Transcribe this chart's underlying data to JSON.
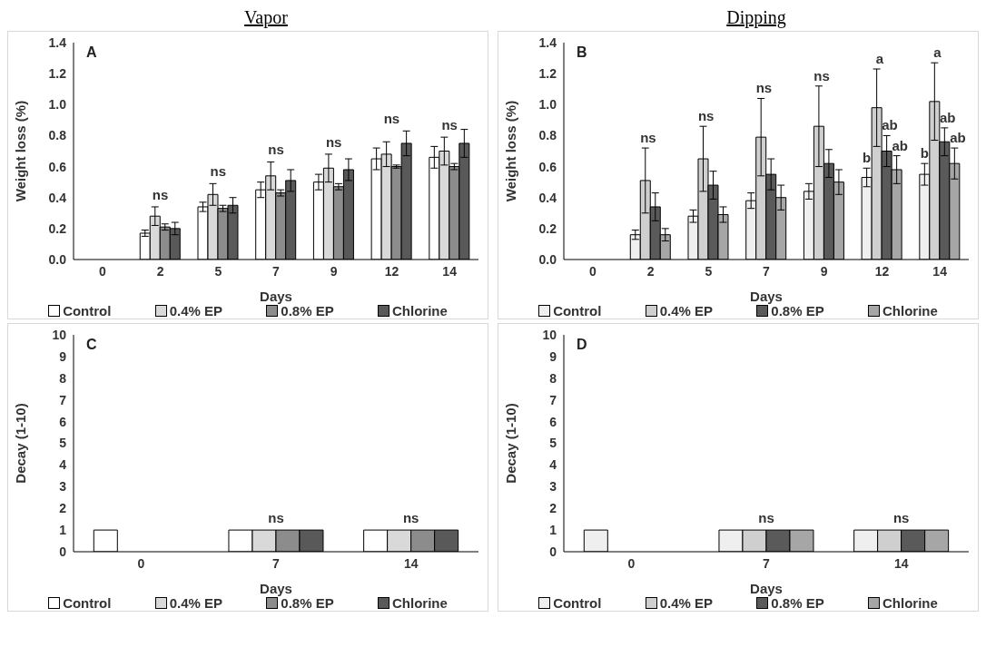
{
  "chart_data": [
    {
      "type": "bar",
      "title": "Vapor",
      "xlabel": "Days",
      "ylabel": "Weight loss (%)",
      "categories": [
        "0",
        "2",
        "5",
        "7",
        "9",
        "12",
        "14"
      ],
      "series": [
        {
          "name": "Control",
          "color": "#ffffff",
          "values": [
            null,
            0.17,
            0.34,
            0.45,
            0.5,
            0.65,
            0.66
          ],
          "errors": [
            null,
            0.02,
            0.03,
            0.05,
            0.05,
            0.07,
            0.07
          ]
        },
        {
          "name": "0.4% EP",
          "color": "#d9d9d9",
          "values": [
            null,
            0.28,
            0.42,
            0.54,
            0.59,
            0.68,
            0.7
          ],
          "errors": [
            null,
            0.06,
            0.07,
            0.09,
            0.09,
            0.08,
            0.09
          ]
        },
        {
          "name": "0.8% EP",
          "color": "#8c8c8c",
          "values": [
            null,
            0.21,
            0.33,
            0.43,
            0.47,
            0.6,
            0.6
          ],
          "errors": [
            null,
            0.02,
            0.02,
            0.02,
            0.02,
            0.01,
            0.02
          ]
        },
        {
          "name": "Chlorine",
          "color": "#595959",
          "values": [
            null,
            0.2,
            0.35,
            0.51,
            0.58,
            0.75,
            0.75
          ],
          "errors": [
            null,
            0.04,
            0.05,
            0.07,
            0.07,
            0.08,
            0.09
          ]
        }
      ],
      "ylim": [
        0,
        1.4
      ],
      "yticks": [
        {
          "value": 0,
          "label": "0.0"
        },
        {
          "value": 0.2,
          "label": "0.2"
        },
        {
          "value": 0.4,
          "label": "0.4"
        },
        {
          "value": 0.6,
          "label": "0.6"
        },
        {
          "value": 0.8,
          "label": "0.8"
        },
        {
          "value": 1,
          "label": "1.0"
        },
        {
          "value": 1.2,
          "label": "1.2"
        },
        {
          "value": 1.4,
          "label": "1.4"
        }
      ],
      "grid": false,
      "legend": "bottom",
      "annotations": [
        "A",
        {
          "text": "ns",
          "x": "2",
          "y": 0.28
        },
        {
          "text": "ns",
          "x": "5",
          "y": 0.42
        },
        {
          "text": "ns",
          "x": "7",
          "y": 0.54
        },
        {
          "text": "ns",
          "x": "9",
          "y": 0.59
        },
        {
          "text": "ns",
          "x": "12",
          "y": 0.75
        },
        {
          "text": "ns",
          "x": "14",
          "y": 0.7
        }
      ]
    },
    {
      "type": "bar",
      "title": "Dipping",
      "xlabel": "Days",
      "ylabel": "Weight loss (%)",
      "categories": [
        "0",
        "2",
        "5",
        "7",
        "9",
        "12",
        "14"
      ],
      "series": [
        {
          "name": "Control",
          "color": "#efefef",
          "values": [
            null,
            0.16,
            0.28,
            0.38,
            0.44,
            0.53,
            0.55
          ],
          "errors": [
            null,
            0.03,
            0.04,
            0.05,
            0.05,
            0.06,
            0.07
          ],
          "value_labels": [
            null,
            null,
            null,
            null,
            null,
            "b",
            "b"
          ]
        },
        {
          "name": "0.4% EP",
          "color": "#cfcfcf",
          "values": [
            null,
            0.51,
            0.65,
            0.79,
            0.86,
            0.98,
            1.02
          ],
          "errors": [
            null,
            0.21,
            0.21,
            0.25,
            0.26,
            0.25,
            0.25
          ],
          "value_labels": [
            null,
            "ns",
            "ns",
            "ns",
            "ns",
            "a",
            "a"
          ]
        },
        {
          "name": "0.8% EP",
          "color": "#5a5a5a",
          "values": [
            null,
            0.34,
            0.48,
            0.55,
            0.62,
            0.7,
            0.76
          ],
          "errors": [
            null,
            0.09,
            0.09,
            0.1,
            0.09,
            0.1,
            0.09
          ],
          "value_labels": [
            null,
            null,
            null,
            null,
            null,
            "ab",
            "ab"
          ]
        },
        {
          "name": "Chlorine",
          "color": "#a6a6a6",
          "values": [
            null,
            0.16,
            0.29,
            0.4,
            0.5,
            0.58,
            0.62
          ],
          "errors": [
            null,
            0.04,
            0.05,
            0.08,
            0.08,
            0.09,
            0.1
          ],
          "value_labels": [
            null,
            null,
            null,
            null,
            null,
            "ab",
            "ab"
          ]
        }
      ],
      "ylim": [
        0,
        1.4
      ],
      "yticks": [
        {
          "value": 0,
          "label": "0.0"
        },
        {
          "value": 0.2,
          "label": "0.2"
        },
        {
          "value": 0.4,
          "label": "0.4"
        },
        {
          "value": 0.6,
          "label": "0.6"
        },
        {
          "value": 0.8,
          "label": "0.8"
        },
        {
          "value": 1,
          "label": "1.0"
        },
        {
          "value": 1.2,
          "label": "1.2"
        },
        {
          "value": 1.4,
          "label": "1.4"
        }
      ],
      "grid": false,
      "legend": "bottom",
      "annotations": [
        "B"
      ]
    },
    {
      "type": "bar",
      "xlabel": "Days",
      "ylabel": "Decay (1-10)",
      "categories": [
        "0",
        "7",
        "14"
      ],
      "series": [
        {
          "name": "Control",
          "color": "#ffffff",
          "values": [
            1,
            1,
            1
          ]
        },
        {
          "name": "0.4% EP",
          "color": "#d9d9d9",
          "values": [
            null,
            1,
            1
          ]
        },
        {
          "name": "0.8% EP",
          "color": "#8c8c8c",
          "values": [
            null,
            1,
            1
          ]
        },
        {
          "name": "Chlorine",
          "color": "#595959",
          "values": [
            null,
            1,
            1
          ]
        }
      ],
      "ylim": [
        0,
        10
      ],
      "yticks": [
        0,
        1,
        2,
        3,
        4,
        5,
        6,
        7,
        8,
        9,
        10
      ],
      "grid": false,
      "legend": "bottom",
      "annotations": [
        "C",
        {
          "text": "ns",
          "x": "7",
          "y": 1
        },
        {
          "text": "ns",
          "x": "14",
          "y": 1
        }
      ]
    },
    {
      "type": "bar",
      "xlabel": "Days",
      "ylabel": "Decay (1-10)",
      "categories": [
        "0",
        "7",
        "14"
      ],
      "series": [
        {
          "name": "Control",
          "color": "#efefef",
          "values": [
            1,
            1,
            1
          ]
        },
        {
          "name": "0.4% EP",
          "color": "#cfcfcf",
          "values": [
            null,
            1,
            1
          ]
        },
        {
          "name": "0.8% EP",
          "color": "#5a5a5a",
          "values": [
            null,
            1,
            1
          ]
        },
        {
          "name": "Chlorine",
          "color": "#a6a6a6",
          "values": [
            null,
            1,
            1
          ]
        }
      ],
      "ylim": [
        0,
        10
      ],
      "yticks": [
        0,
        1,
        2,
        3,
        4,
        5,
        6,
        7,
        8,
        9,
        10
      ],
      "grid": false,
      "legend": "bottom",
      "annotations": [
        "D",
        {
          "text": "ns",
          "x": "7",
          "y": 1
        },
        {
          "text": "ns",
          "x": "14",
          "y": 1
        }
      ]
    }
  ]
}
